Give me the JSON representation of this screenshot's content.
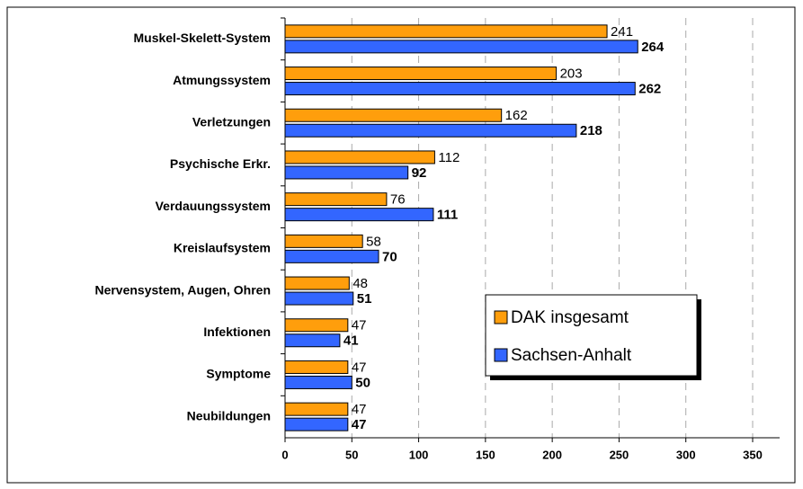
{
  "chart_data": {
    "type": "bar",
    "orientation": "horizontal",
    "categories": [
      "Muskel-Skelett-System",
      "Atmungssystem",
      "Verletzungen",
      "Psychische Erkr.",
      "Verdauungssystem",
      "Kreislaufsystem",
      "Nervensystem, Augen, Ohren",
      "Infektionen",
      "Symptome",
      "Neubildungen"
    ],
    "series": [
      {
        "name": "DAK insgesamt",
        "color": "#ff9e0c",
        "values": [
          241,
          203,
          162,
          112,
          76,
          58,
          48,
          47,
          47,
          47
        ]
      },
      {
        "name": "Sachsen-Anhalt",
        "color": "#3366ff",
        "values": [
          264,
          262,
          218,
          92,
          111,
          70,
          51,
          41,
          50,
          47
        ]
      }
    ],
    "xlim": [
      0,
      350
    ],
    "xticks": [
      0,
      50,
      100,
      150,
      200,
      250,
      300,
      350
    ],
    "grid": true,
    "legend": "lower right"
  }
}
